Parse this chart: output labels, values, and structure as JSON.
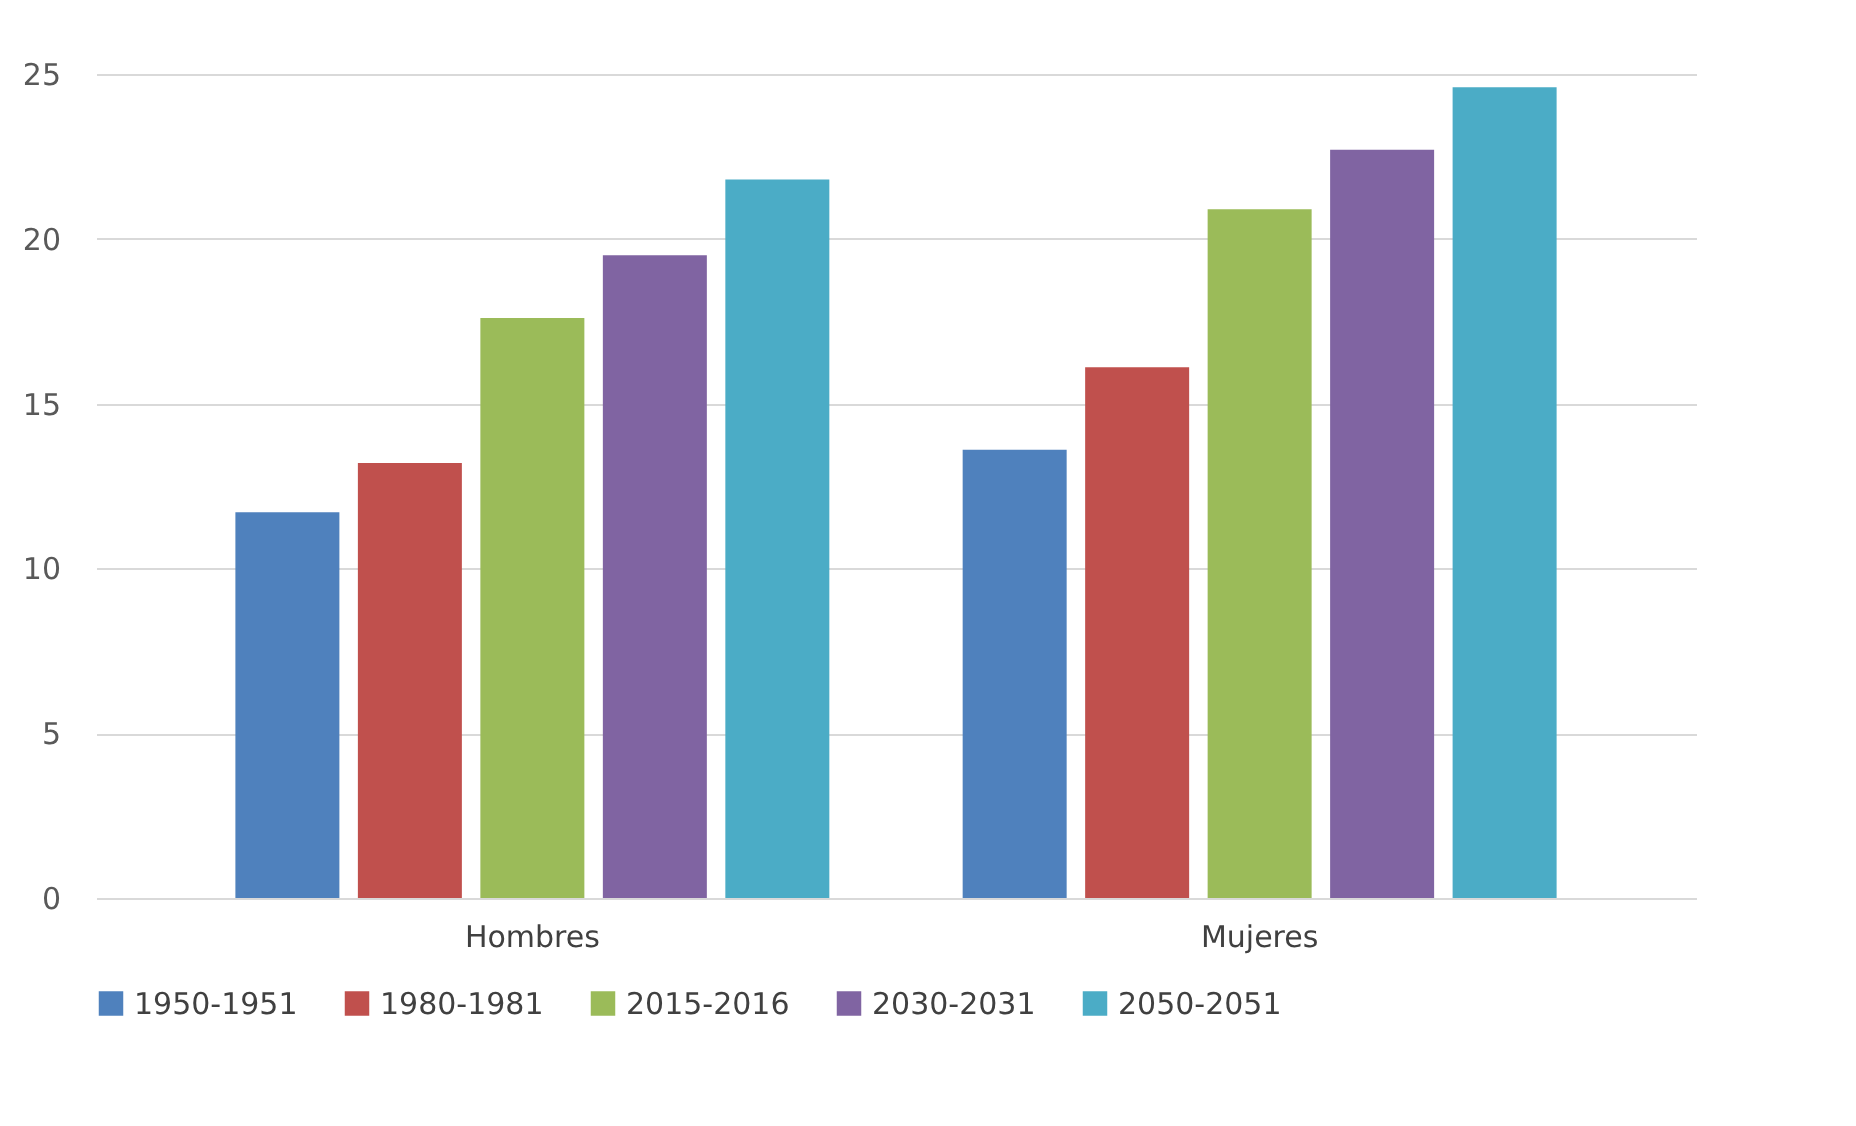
{
  "chart_data": {
    "type": "bar",
    "categories": [
      "Hombres",
      "Mujeres"
    ],
    "series": [
      {
        "name": "1950-1951",
        "color": "#4f81bd",
        "values": [
          11.7,
          13.6
        ]
      },
      {
        "name": "1980-1981",
        "color": "#c0504d",
        "values": [
          13.2,
          16.1
        ]
      },
      {
        "name": "2015-2016",
        "color": "#9bbb59",
        "values": [
          17.6,
          20.9
        ]
      },
      {
        "name": "2030-2031",
        "color": "#8064a2",
        "values": [
          19.5,
          22.7
        ]
      },
      {
        "name": "2050-2051",
        "color": "#4bacc6",
        "values": [
          21.8,
          24.6
        ]
      }
    ],
    "ylim": [
      0,
      25
    ],
    "yticks": [
      0,
      5,
      10,
      15,
      20,
      25
    ],
    "grid": "y",
    "legend": "bottom"
  }
}
